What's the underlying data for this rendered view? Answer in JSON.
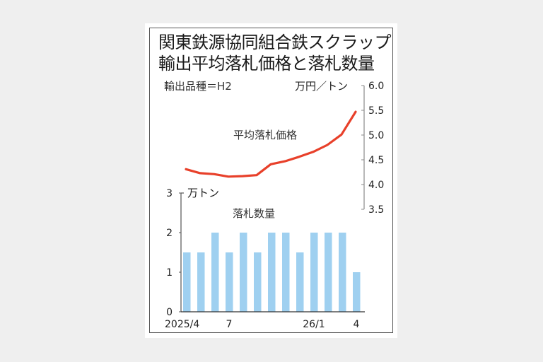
{
  "title_lines": [
    "関東鉄源協同組合鉄スクラップ",
    "輸出平均落札価格と落札数量"
  ],
  "subtitle": "輸出品種＝H2",
  "colors": {
    "line": "#e8402a",
    "bar": "#9fd0f0",
    "axis": "#555555",
    "background": "#efefef",
    "card": "#ffffff"
  },
  "chart_data": {
    "type": "bar+line",
    "title": "関東鉄源協同組合鉄スクラップ 輸出平均落札価格と落札数量",
    "subtitle": "輸出品種＝H2",
    "categories": [
      "2025/4",
      "2025/5",
      "2025/6",
      "2025/7",
      "2025/8",
      "2025/9",
      "2025/10",
      "2025/11",
      "2025/12",
      "2026/1",
      "2026/2",
      "2026/3",
      "2026/4"
    ],
    "x_tick_labels": [
      {
        "index": 0,
        "label": "2025/4"
      },
      {
        "index": 3,
        "label": "7"
      },
      {
        "index": 9,
        "label": "26/1"
      },
      {
        "index": 12,
        "label": "4"
      }
    ],
    "series": [
      {
        "name": "平均落札価格",
        "type": "line",
        "axis": "right",
        "unit": "万円／トン",
        "values": [
          4.31,
          4.23,
          4.21,
          4.16,
          4.17,
          4.19,
          4.41,
          4.47,
          4.56,
          4.66,
          4.8,
          5.01,
          5.47
        ]
      },
      {
        "name": "落札数量",
        "type": "bar",
        "axis": "left",
        "unit": "万トン",
        "values": [
          1.5,
          1.5,
          2,
          1.5,
          2,
          1.5,
          2,
          2,
          1.5,
          2,
          2,
          2,
          1
        ]
      }
    ],
    "right_axis": {
      "label": "万円／トン",
      "ylim": [
        3.5,
        6.0
      ],
      "ticks": [
        "6.0",
        "5.5",
        "5.0",
        "4.5",
        "4.0",
        "3.5"
      ]
    },
    "left_axis": {
      "label": "万トン",
      "ylim": [
        0,
        3
      ],
      "ticks": [
        "3",
        "2",
        "1",
        "0"
      ]
    },
    "grid": false,
    "legend": "inline labels"
  }
}
